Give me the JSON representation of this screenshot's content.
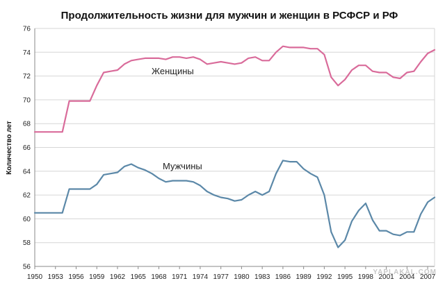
{
  "chart_data": {
    "type": "line",
    "title": "Продолжительность жизни для мужчин и женщин в РСФСР и РФ",
    "xlabel": "",
    "ylabel": "Количество лет",
    "ylim": [
      56,
      76
    ],
    "xlim": [
      1950,
      2008
    ],
    "grid": true,
    "y_ticks": [
      "56",
      "58",
      "60",
      "62",
      "64",
      "66",
      "68",
      "70",
      "72",
      "74",
      "76"
    ],
    "x_ticks": [
      "1950",
      "1953",
      "1956",
      "1959",
      "1962",
      "1965",
      "1968",
      "1971",
      "1974",
      "1977",
      "1980",
      "1983",
      "1986",
      "1989",
      "1992",
      "1995",
      "1998",
      "2001",
      "2004",
      "2007"
    ],
    "series": [
      {
        "name": "Женщины",
        "color": "#d96b9a",
        "x": [
          1950,
          1951,
          1952,
          1953,
          1954,
          1955,
          1956,
          1957,
          1958,
          1959,
          1960,
          1961,
          1962,
          1963,
          1964,
          1965,
          1966,
          1967,
          1968,
          1969,
          1970,
          1971,
          1972,
          1973,
          1974,
          1975,
          1976,
          1977,
          1978,
          1979,
          1980,
          1981,
          1982,
          1983,
          1984,
          1985,
          1986,
          1987,
          1988,
          1989,
          1990,
          1991,
          1992,
          1993,
          1994,
          1995,
          1996,
          1997,
          1998,
          1999,
          2000,
          2001,
          2002,
          2003,
          2004,
          2005,
          2006,
          2007,
          2008
        ],
        "values": [
          67.3,
          67.3,
          67.3,
          67.3,
          67.3,
          69.9,
          69.9,
          69.9,
          69.9,
          71.2,
          72.3,
          72.4,
          72.5,
          73.0,
          73.3,
          73.4,
          73.5,
          73.5,
          73.5,
          73.4,
          73.6,
          73.6,
          73.5,
          73.6,
          73.4,
          73.0,
          73.1,
          73.2,
          73.1,
          73.0,
          73.1,
          73.5,
          73.6,
          73.3,
          73.3,
          74.0,
          74.5,
          74.4,
          74.4,
          74.4,
          74.3,
          74.3,
          73.8,
          71.9,
          71.2,
          71.7,
          72.5,
          72.9,
          72.9,
          72.4,
          72.3,
          72.3,
          71.9,
          71.8,
          72.3,
          72.4,
          73.2,
          73.9,
          74.2
        ]
      },
      {
        "name": "Мужчины",
        "color": "#5b88a8",
        "x": [
          1950,
          1951,
          1952,
          1953,
          1954,
          1955,
          1956,
          1957,
          1958,
          1959,
          1960,
          1961,
          1962,
          1963,
          1964,
          1965,
          1966,
          1967,
          1968,
          1969,
          1970,
          1971,
          1972,
          1973,
          1974,
          1975,
          1976,
          1977,
          1978,
          1979,
          1980,
          1981,
          1982,
          1983,
          1984,
          1985,
          1986,
          1987,
          1988,
          1989,
          1990,
          1991,
          1992,
          1993,
          1994,
          1995,
          1996,
          1997,
          1998,
          1999,
          2000,
          2001,
          2002,
          2003,
          2004,
          2005,
          2006,
          2007,
          2008
        ],
        "values": [
          60.5,
          60.5,
          60.5,
          60.5,
          60.5,
          62.5,
          62.5,
          62.5,
          62.5,
          62.9,
          63.7,
          63.8,
          63.9,
          64.4,
          64.6,
          64.3,
          64.1,
          63.8,
          63.4,
          63.1,
          63.2,
          63.2,
          63.2,
          63.1,
          62.8,
          62.3,
          62.0,
          61.8,
          61.7,
          61.5,
          61.6,
          62.0,
          62.3,
          62.0,
          62.3,
          63.8,
          64.9,
          64.8,
          64.8,
          64.2,
          63.8,
          63.5,
          62.0,
          58.9,
          57.6,
          58.2,
          59.8,
          60.7,
          61.3,
          59.9,
          59.0,
          59.0,
          58.7,
          58.6,
          58.9,
          58.9,
          60.4,
          61.4,
          61.8
        ]
      }
    ],
    "watermark": "YAPLAKAL.COM"
  }
}
